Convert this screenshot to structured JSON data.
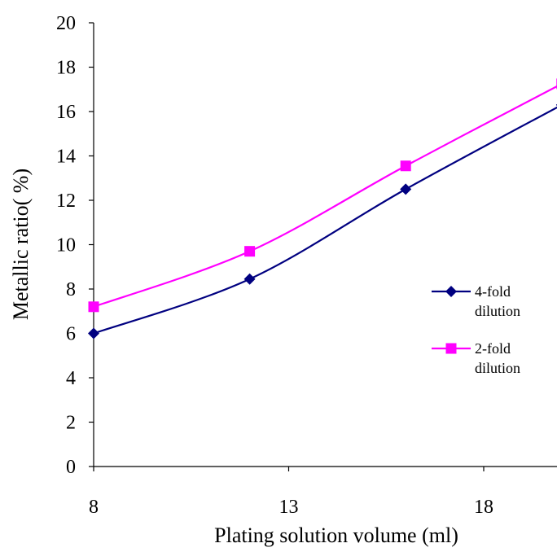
{
  "chart_data": {
    "type": "line",
    "xlabel": "Plating solution volume (ml)",
    "ylabel": "Metallic ratio( %)",
    "xlim": [
      8,
      20
    ],
    "ylim": [
      0,
      20
    ],
    "xticks": [
      8,
      13,
      18
    ],
    "yticks": [
      0,
      2,
      4,
      6,
      8,
      10,
      12,
      14,
      16,
      18,
      20
    ],
    "grid": false,
    "legend_position": "right",
    "series": [
      {
        "name": "4-fold dilution",
        "legend_lines": [
          "4-fold",
          "dilution"
        ],
        "color": "#000080",
        "marker": "diamond",
        "x": [
          8,
          12,
          16,
          20
        ],
        "y": [
          6.0,
          8.45,
          12.5,
          16.3
        ]
      },
      {
        "name": "2-fold dilution",
        "legend_lines": [
          "2-fold",
          "dilution"
        ],
        "color": "#FF00FF",
        "marker": "square",
        "x": [
          8,
          12,
          16,
          20
        ],
        "y": [
          7.2,
          9.7,
          13.55,
          17.25
        ]
      }
    ]
  }
}
